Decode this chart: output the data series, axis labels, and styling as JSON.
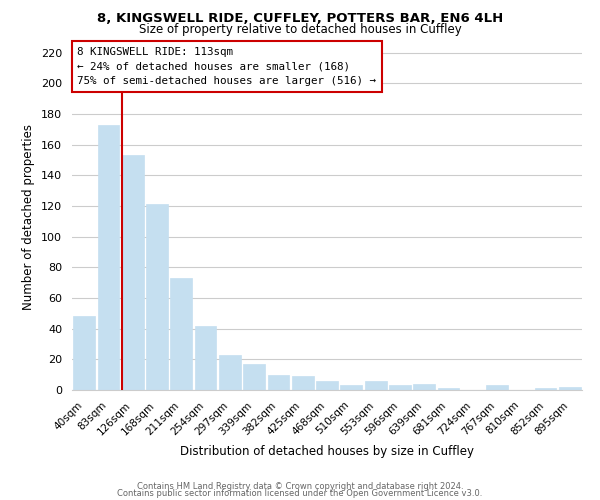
{
  "title1": "8, KINGSWELL RIDE, CUFFLEY, POTTERS BAR, EN6 4LH",
  "title2": "Size of property relative to detached houses in Cuffley",
  "xlabel": "Distribution of detached houses by size in Cuffley",
  "ylabel": "Number of detached properties",
  "bar_labels": [
    "40sqm",
    "83sqm",
    "126sqm",
    "168sqm",
    "211sqm",
    "254sqm",
    "297sqm",
    "339sqm",
    "382sqm",
    "425sqm",
    "468sqm",
    "510sqm",
    "553sqm",
    "596sqm",
    "639sqm",
    "681sqm",
    "724sqm",
    "767sqm",
    "810sqm",
    "852sqm",
    "895sqm"
  ],
  "bar_values": [
    48,
    173,
    153,
    121,
    73,
    42,
    23,
    17,
    10,
    9,
    6,
    3,
    6,
    3,
    4,
    1,
    0,
    3,
    0,
    1,
    2
  ],
  "bar_color": "#c5dff0",
  "bar_edge_color": "#c5dff0",
  "vline_color": "#cc0000",
  "annotation_line1": "8 KINGSWELL RIDE: 113sqm",
  "annotation_line2": "← 24% of detached houses are smaller (168)",
  "annotation_line3": "75% of semi-detached houses are larger (516) →",
  "footer1": "Contains HM Land Registry data © Crown copyright and database right 2024.",
  "footer2": "Contains public sector information licensed under the Open Government Licence v3.0.",
  "ylim": [
    0,
    225
  ],
  "yticks": [
    0,
    20,
    40,
    60,
    80,
    100,
    120,
    140,
    160,
    180,
    200,
    220
  ],
  "grid_color": "#cccccc",
  "background_color": "#ffffff"
}
